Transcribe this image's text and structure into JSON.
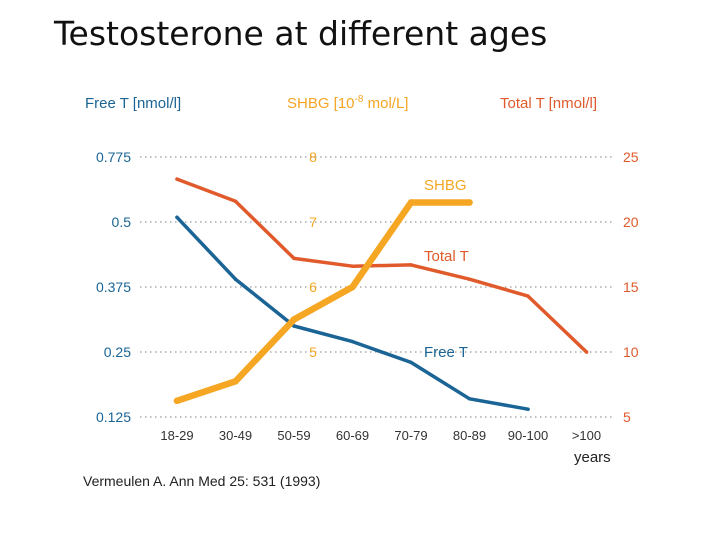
{
  "slide": {
    "title": "Testosterone at different ages"
  },
  "colors": {
    "free_t": "#1a6496",
    "shbg": "#f5a623",
    "total_t": "#e05a2b",
    "grid": "#999999",
    "axis_text": "#333333"
  },
  "chart_data": {
    "type": "line",
    "title": "Testosterone at different ages",
    "categories": [
      "18-29",
      "30-49",
      "50-59",
      "60-69",
      "70-79",
      "80-89",
      "90-100",
      ">100"
    ],
    "xlabel": "years",
    "axes": {
      "left": {
        "label": "Free T [nmol/l]",
        "ticks": [
          0.125,
          0.25,
          0.375,
          0.5,
          0.775
        ],
        "tick_labels": [
          "0.125",
          "0.25",
          "0.375",
          "0.5",
          "0.775"
        ]
      },
      "middle": {
        "label_main": "SHBG [10",
        "label_sup": "-8",
        "label_tail": " mol/L]",
        "ticks": [
          5,
          6,
          7,
          8
        ],
        "tick_labels": [
          "5",
          "6",
          "7",
          "8"
        ]
      },
      "right": {
        "label": "Total T [nmol/l]",
        "ylim": [
          5,
          25
        ],
        "ticks": [
          5,
          10,
          15,
          20,
          25
        ],
        "tick_labels": [
          "5",
          "10",
          "15",
          "20",
          "25"
        ]
      }
    },
    "series": [
      {
        "name": "Free T",
        "axis": "left",
        "color_key": "free_t",
        "values": [
          0.52,
          0.39,
          0.3,
          0.27,
          0.23,
          0.16,
          0.14,
          null
        ]
      },
      {
        "name": "SHBG",
        "axis": "middle",
        "color_key": "shbg",
        "values": [
          4.25,
          4.55,
          5.5,
          6.0,
          7.3,
          7.3,
          null,
          null
        ]
      },
      {
        "name": "Total T",
        "axis": "right",
        "color_key": "total_t",
        "values": [
          23.3,
          21.6,
          17.2,
          16.6,
          16.7,
          15.6,
          14.3,
          10.0
        ]
      }
    ],
    "series_labels": [
      "SHBG",
      "Total T",
      "Free T"
    ],
    "citation": "Vermeulen A. Ann Med 25: 531 (1993)"
  }
}
